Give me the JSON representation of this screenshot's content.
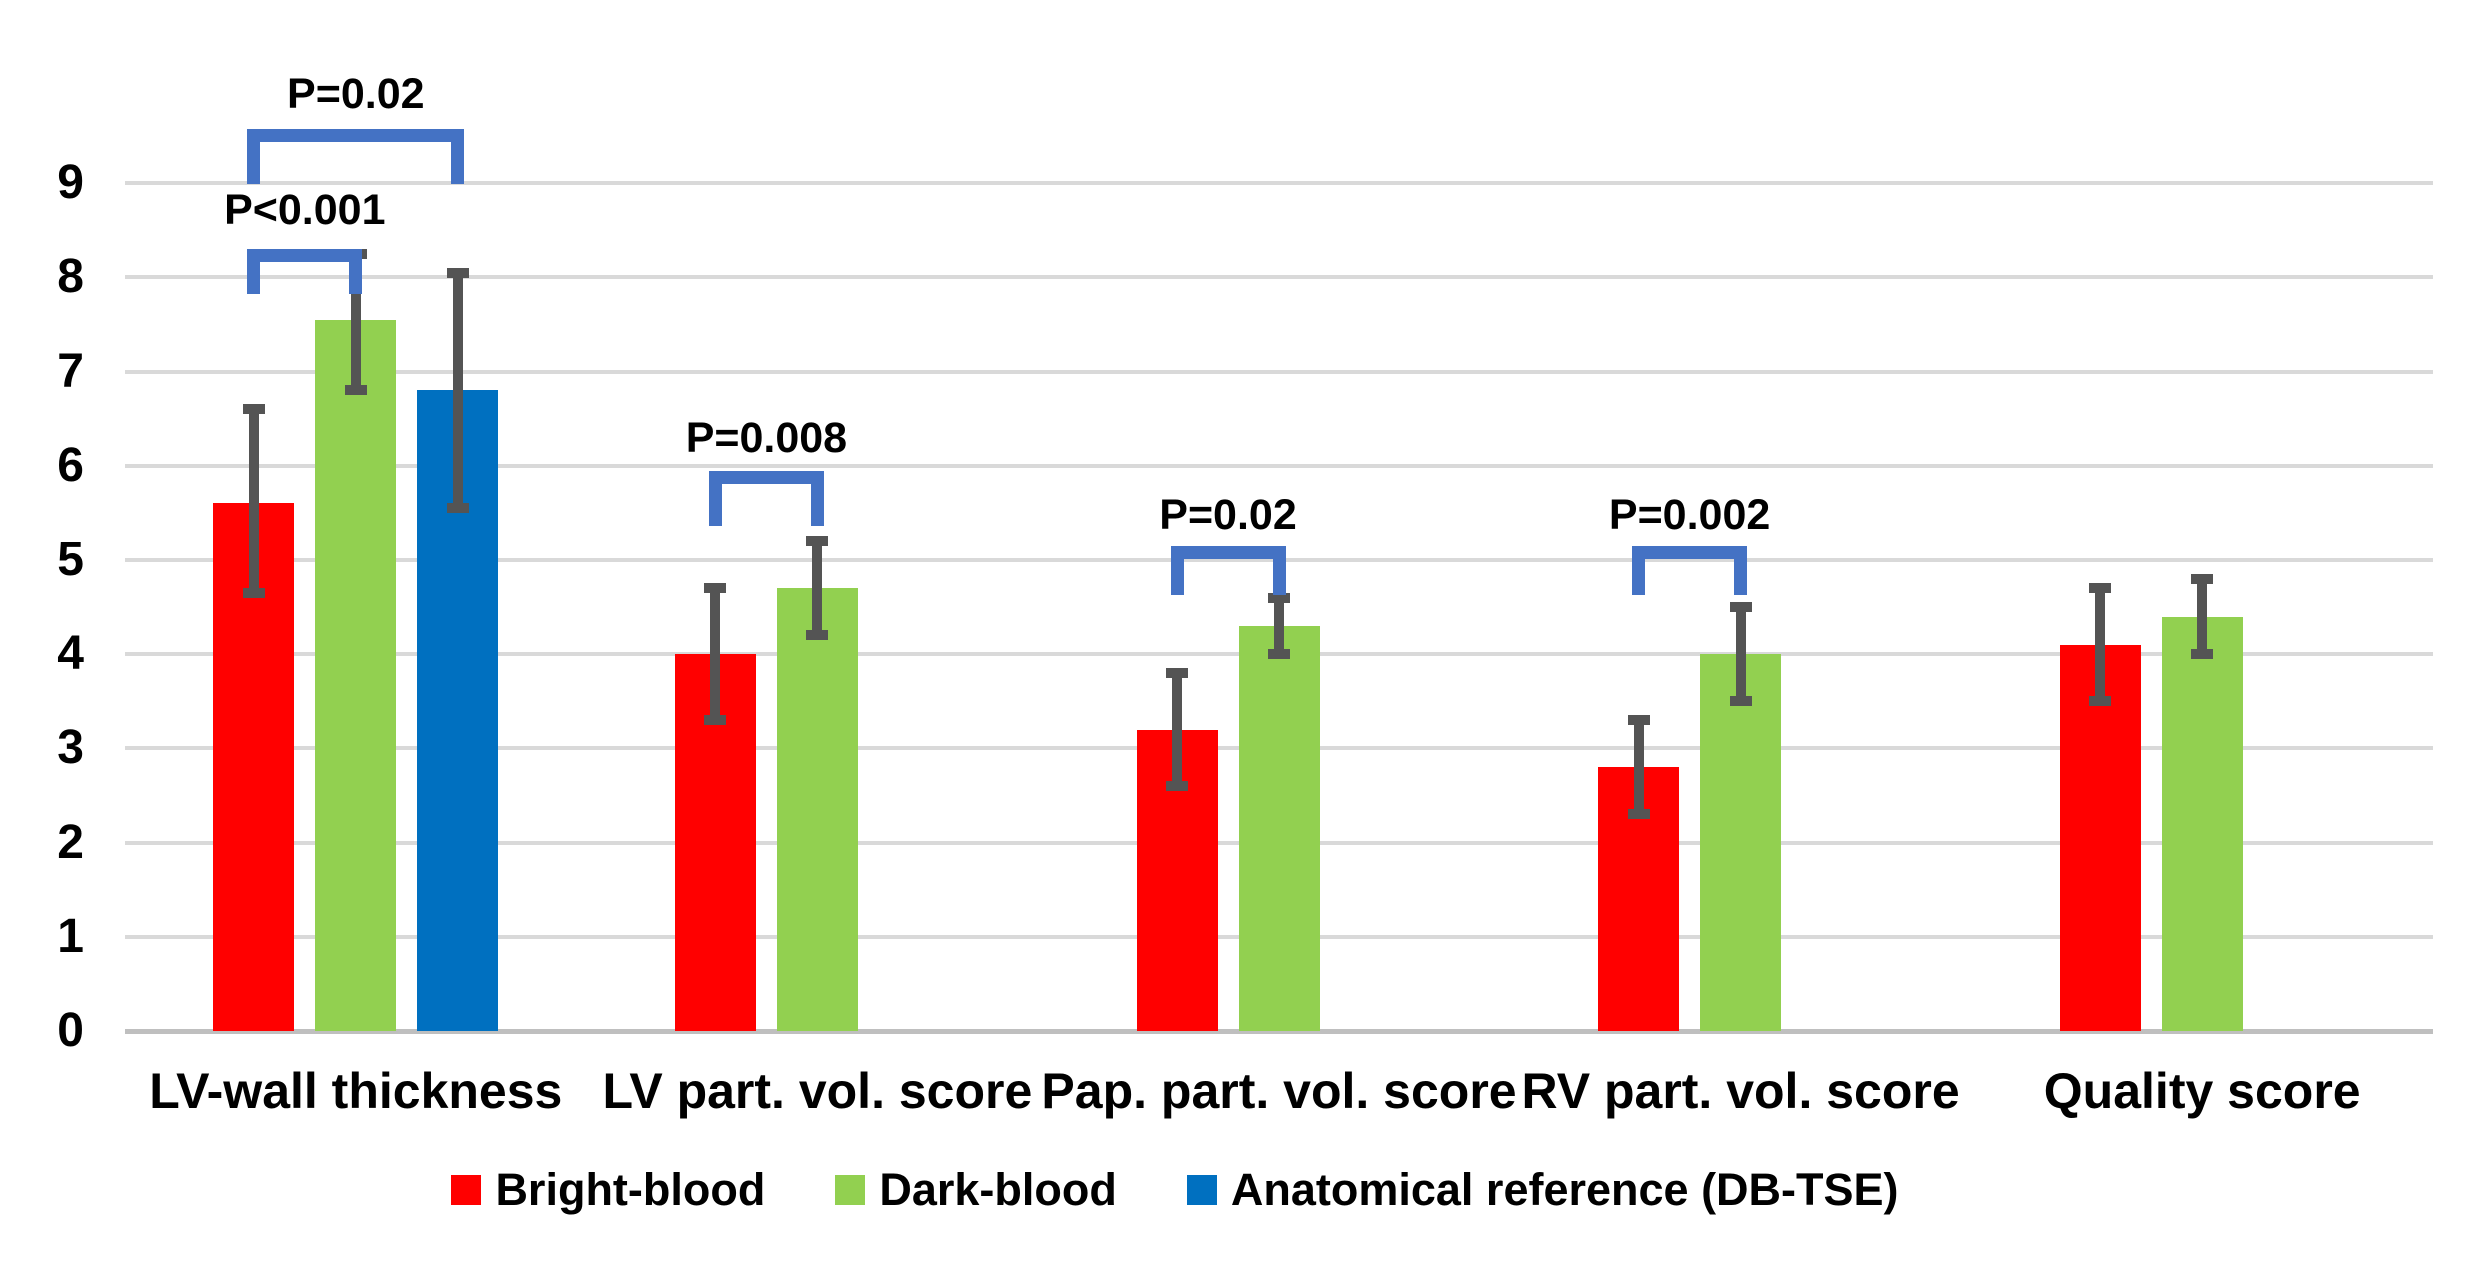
{
  "chart_data": {
    "type": "bar",
    "title": "",
    "xlabel": "",
    "ylabel": "",
    "categories": [
      "LV-wall thickness",
      "LV part. vol. score",
      "Pap. part. vol. score",
      "RV part. vol. score",
      "Quality score"
    ],
    "series": [
      {
        "name": "Bright-blood",
        "color": "#FF0000",
        "values": [
          5.6,
          4.0,
          3.2,
          2.8,
          4.1
        ],
        "err_low": [
          4.65,
          3.3,
          2.6,
          2.3,
          3.5
        ],
        "err_high": [
          6.6,
          4.7,
          3.8,
          3.3,
          4.7
        ]
      },
      {
        "name": "Dark-blood",
        "color": "#92D050",
        "values": [
          7.55,
          4.7,
          4.3,
          4.0,
          4.4
        ],
        "err_low": [
          6.8,
          4.2,
          4.0,
          3.5,
          4.0
        ],
        "err_high": [
          8.25,
          5.2,
          4.6,
          4.5,
          4.8
        ]
      },
      {
        "name": "Anatomical reference (DB-TSE)",
        "color": "#0070C0",
        "values": [
          6.8,
          null,
          null,
          null,
          null
        ],
        "err_low": [
          5.55,
          null,
          null,
          null,
          null
        ],
        "err_high": [
          8.05,
          null,
          null,
          null,
          null
        ]
      }
    ],
    "y_axis": {
      "min": 0,
      "max": 9,
      "step": 1,
      "tick_labels": [
        "0",
        "1",
        "2",
        "3",
        "4",
        "5",
        "6",
        "7",
        "8",
        "9"
      ]
    },
    "grid": "horizontal",
    "legend_position": "bottom",
    "significance_annotations": [
      {
        "category_index": 0,
        "from_series": 0,
        "to_series": 2,
        "label": "P=0.02",
        "bracket_value": 9.58,
        "leg_drop": 0.45,
        "label_value": 9.95
      },
      {
        "category_index": 0,
        "from_series": 0,
        "to_series": 1,
        "label": "P<0.001",
        "bracket_value": 8.3,
        "leg_drop": 0.34,
        "label_value": 8.72
      },
      {
        "category_index": 1,
        "from_series": 0,
        "to_series": 1,
        "label": "P=0.008",
        "bracket_value": 5.95,
        "leg_drop": 0.45,
        "label_value": 6.3
      },
      {
        "category_index": 2,
        "from_series": 0,
        "to_series": 1,
        "label": "P=0.02",
        "bracket_value": 5.15,
        "leg_drop": 0.38,
        "label_value": 5.48
      },
      {
        "category_index": 3,
        "from_series": 0,
        "to_series": 1,
        "label": "P=0.002",
        "bracket_value": 5.15,
        "leg_drop": 0.38,
        "label_value": 5.48
      }
    ],
    "colors": {
      "bracket": "#4472C4",
      "error_bar": "#545454",
      "gridline": "#D9D9D9",
      "axis_line": "#BFBFBF",
      "text": "#000000",
      "background": "#FFFFFF"
    }
  }
}
